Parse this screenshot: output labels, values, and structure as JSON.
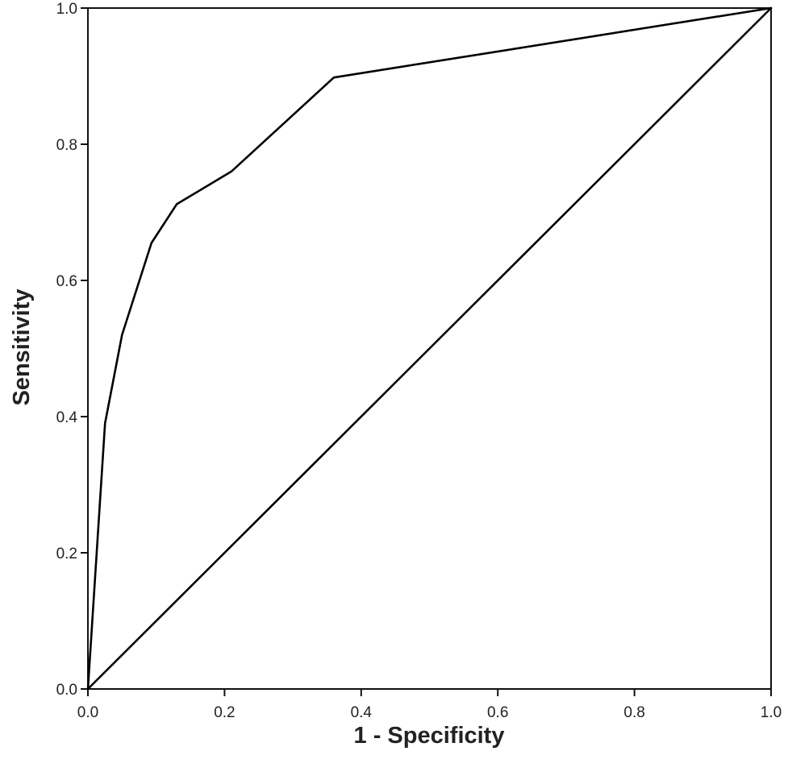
{
  "chart_data": {
    "type": "line",
    "title": "",
    "xlabel": "1 - Specificity",
    "ylabel": "Sensitivity",
    "xlim": [
      0,
      1
    ],
    "ylim": [
      0,
      1
    ],
    "grid": false,
    "x_ticks": [
      "0.0",
      "0.2",
      "0.4",
      "0.6",
      "0.8",
      "1.0"
    ],
    "y_ticks": [
      "0.0",
      "0.2",
      "0.4",
      "0.6",
      "0.8",
      "1.0"
    ],
    "series": [
      {
        "x": [
          0.0,
          0.025,
          0.05,
          0.093,
          0.13,
          0.21,
          0.36,
          1.0
        ],
        "y": [
          0.0,
          0.39,
          0.52,
          0.655,
          0.712,
          0.76,
          0.898,
          1.0
        ],
        "color": "#000000"
      },
      {
        "x": [
          0.0,
          1.0
        ],
        "y": [
          0.0,
          1.0
        ],
        "color": "#000000"
      }
    ]
  }
}
